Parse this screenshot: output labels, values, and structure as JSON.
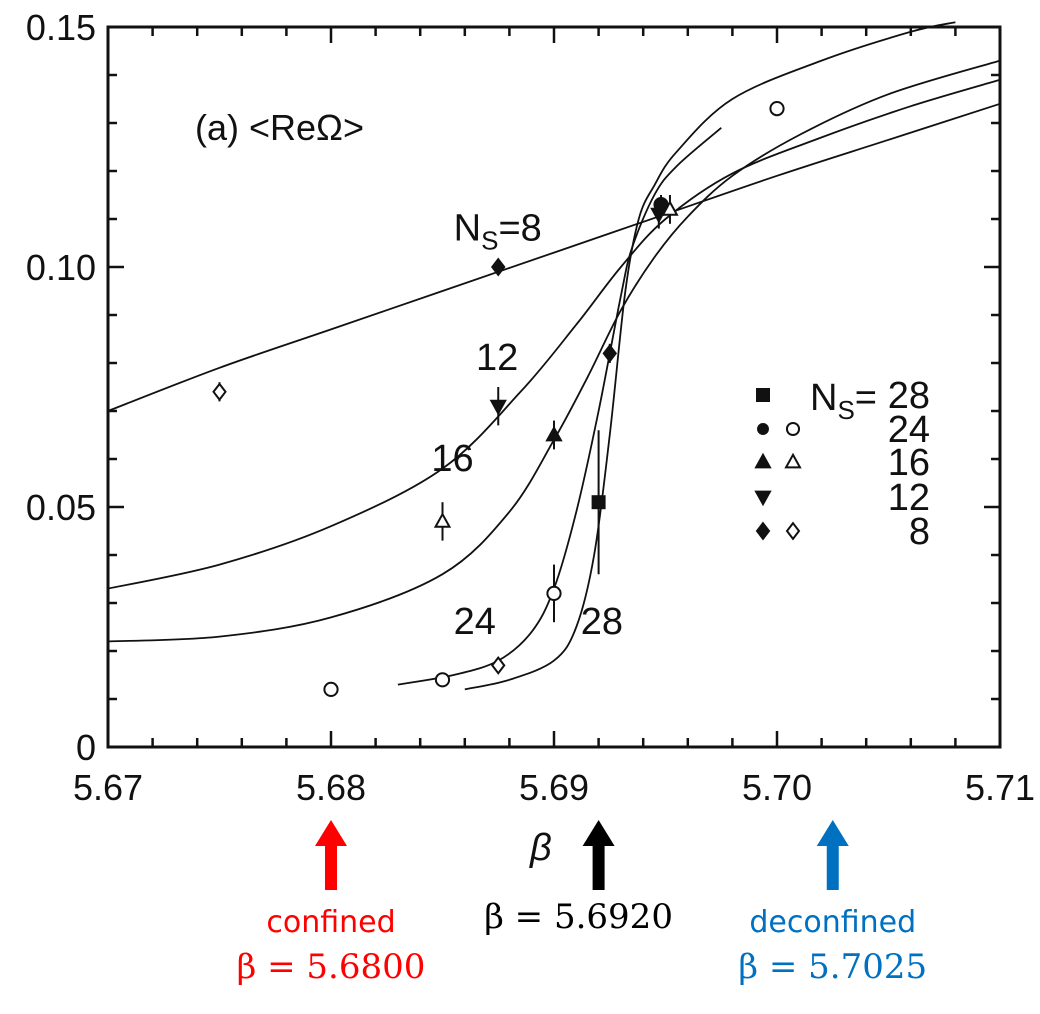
{
  "chart_data": {
    "type": "scatter",
    "panel_label": "(a)  <ReΩ>",
    "xlabel": "β",
    "ylabel": "",
    "xlim": [
      5.67,
      5.71
    ],
    "ylim": [
      0,
      0.15
    ],
    "x_ticks": [
      {
        "value": 5.67,
        "label": "5.67"
      },
      {
        "value": 5.68,
        "label": "5.68"
      },
      {
        "value": 5.69,
        "label": "5.69"
      },
      {
        "value": 5.7,
        "label": "5.70"
      },
      {
        "value": 5.71,
        "label": "5.71"
      }
    ],
    "y_ticks": [
      {
        "value": 0,
        "label": "0"
      },
      {
        "value": 0.05,
        "label": "0.05"
      },
      {
        "value": 0.1,
        "label": "0.10"
      },
      {
        "value": 0.15,
        "label": "0.15"
      }
    ],
    "legend": {
      "placement": "right",
      "header": "N",
      "header_sub": "S",
      "header_eq": "=",
      "entries": [
        {
          "label": "28",
          "filled": "square",
          "open": ""
        },
        {
          "label": "24",
          "filled": "circle",
          "open": "circle"
        },
        {
          "label": "16",
          "filled": "triangle",
          "open": "triangle"
        },
        {
          "label": "12",
          "filled": "triangle-down",
          "open": ""
        },
        {
          "label": "8",
          "filled": "diamond",
          "open": "diamond"
        }
      ]
    },
    "curve_labels": [
      {
        "text": "N",
        "sub": "S",
        "rest": "=8",
        "x": 5.6855,
        "y": 0.1055
      },
      {
        "text": "12",
        "x": 5.6865,
        "y": 0.0785
      },
      {
        "text": "16",
        "x": 5.6845,
        "y": 0.0575
      },
      {
        "text": "24",
        "x": 5.6855,
        "y": 0.0235
      },
      {
        "text": "28",
        "x": 5.6912,
        "y": 0.0235
      }
    ],
    "curves": [
      {
        "name": "8",
        "points": [
          [
            5.67,
            0.07
          ],
          [
            5.675,
            0.079
          ],
          [
            5.68,
            0.087
          ],
          [
            5.685,
            0.095
          ],
          [
            5.69,
            0.103
          ],
          [
            5.695,
            0.111
          ],
          [
            5.7,
            0.119
          ],
          [
            5.705,
            0.1265
          ],
          [
            5.71,
            0.134
          ]
        ]
      },
      {
        "name": "12",
        "points": [
          [
            5.67,
            0.033
          ],
          [
            5.675,
            0.038
          ],
          [
            5.68,
            0.046
          ],
          [
            5.685,
            0.058
          ],
          [
            5.6885,
            0.074
          ],
          [
            5.691,
            0.088
          ],
          [
            5.693,
            0.1
          ],
          [
            5.695,
            0.11
          ],
          [
            5.698,
            0.1195
          ],
          [
            5.702,
            0.127
          ],
          [
            5.706,
            0.1335
          ],
          [
            5.71,
            0.139
          ]
        ]
      },
      {
        "name": "16",
        "points": [
          [
            5.67,
            0.022
          ],
          [
            5.675,
            0.023
          ],
          [
            5.68,
            0.027
          ],
          [
            5.685,
            0.036
          ],
          [
            5.688,
            0.049
          ],
          [
            5.69,
            0.064
          ],
          [
            5.6915,
            0.077
          ],
          [
            5.693,
            0.091
          ],
          [
            5.6945,
            0.102
          ],
          [
            5.696,
            0.1105
          ],
          [
            5.698,
            0.119
          ],
          [
            5.701,
            0.1275
          ],
          [
            5.705,
            0.136
          ],
          [
            5.71,
            0.143
          ]
        ]
      },
      {
        "name": "24",
        "points": [
          [
            5.683,
            0.013
          ],
          [
            5.6855,
            0.015
          ],
          [
            5.6875,
            0.018
          ],
          [
            5.689,
            0.024
          ],
          [
            5.69,
            0.033
          ],
          [
            5.691,
            0.049
          ],
          [
            5.692,
            0.07
          ],
          [
            5.693,
            0.094
          ],
          [
            5.6935,
            0.104
          ],
          [
            5.6945,
            0.115
          ],
          [
            5.6955,
            0.121
          ],
          [
            5.6975,
            0.129
          ]
        ]
      },
      {
        "name": "28",
        "points": [
          [
            5.686,
            0.012
          ],
          [
            5.688,
            0.014
          ],
          [
            5.69,
            0.018
          ],
          [
            5.691,
            0.025
          ],
          [
            5.6918,
            0.04
          ],
          [
            5.6925,
            0.065
          ],
          [
            5.6932,
            0.095
          ],
          [
            5.6938,
            0.11
          ],
          [
            5.6945,
            0.117
          ],
          [
            5.6955,
            0.124
          ],
          [
            5.698,
            0.135
          ],
          [
            5.702,
            0.143
          ],
          [
            5.706,
            0.149
          ],
          [
            5.708,
            0.151
          ]
        ]
      }
    ],
    "points": [
      {
        "series": "8",
        "marker": "diamond",
        "filled": true,
        "x": 5.6875,
        "y": 0.1,
        "err": 0
      },
      {
        "series": "8",
        "marker": "diamond",
        "filled": false,
        "x": 5.675,
        "y": 0.074,
        "err": 0.002
      },
      {
        "series": "8",
        "marker": "diamond",
        "filled": true,
        "x": 5.6925,
        "y": 0.082,
        "err": 0.002
      },
      {
        "series": "8",
        "marker": "diamond",
        "filled": false,
        "x": 5.6875,
        "y": 0.017,
        "err": 0
      },
      {
        "series": "12",
        "marker": "triangle-down",
        "filled": true,
        "x": 5.6875,
        "y": 0.071,
        "err": 0.004
      },
      {
        "series": "12",
        "marker": "triangle-down",
        "filled": true,
        "x": 5.6947,
        "y": 0.111,
        "err": 0.003
      },
      {
        "series": "16",
        "marker": "triangle",
        "filled": true,
        "x": 5.69,
        "y": 0.065,
        "err": 0.003
      },
      {
        "series": "16",
        "marker": "triangle",
        "filled": false,
        "x": 5.685,
        "y": 0.047,
        "err": 0.004
      },
      {
        "series": "16",
        "marker": "triangle",
        "filled": false,
        "x": 5.6952,
        "y": 0.112,
        "err": 0.003
      },
      {
        "series": "24",
        "marker": "circle",
        "filled": false,
        "x": 5.68,
        "y": 0.012,
        "err": 0
      },
      {
        "series": "24",
        "marker": "circle",
        "filled": false,
        "x": 5.685,
        "y": 0.014,
        "err": 0
      },
      {
        "series": "24",
        "marker": "circle",
        "filled": false,
        "x": 5.69,
        "y": 0.032,
        "err": 0.006
      },
      {
        "series": "24",
        "marker": "circle",
        "filled": false,
        "x": 5.7,
        "y": 0.133,
        "err": 0
      },
      {
        "series": "24",
        "marker": "circle",
        "filled": true,
        "x": 5.6948,
        "y": 0.113,
        "err": 0.002
      },
      {
        "series": "28",
        "marker": "square",
        "filled": true,
        "x": 5.692,
        "y": 0.051,
        "err": 0.015
      }
    ]
  },
  "annotations": [
    {
      "id": "confined",
      "x": 5.68,
      "word": "confined",
      "beta": "β = 5.6800",
      "color": "#ff0000"
    },
    {
      "id": "critical",
      "x": 5.692,
      "word": "",
      "beta": "β = 5.6920",
      "color": "#000000"
    },
    {
      "id": "deconfined",
      "x": 5.7025,
      "word": "deconfined",
      "beta": "β = 5.7025",
      "color": "#0070c0"
    }
  ]
}
